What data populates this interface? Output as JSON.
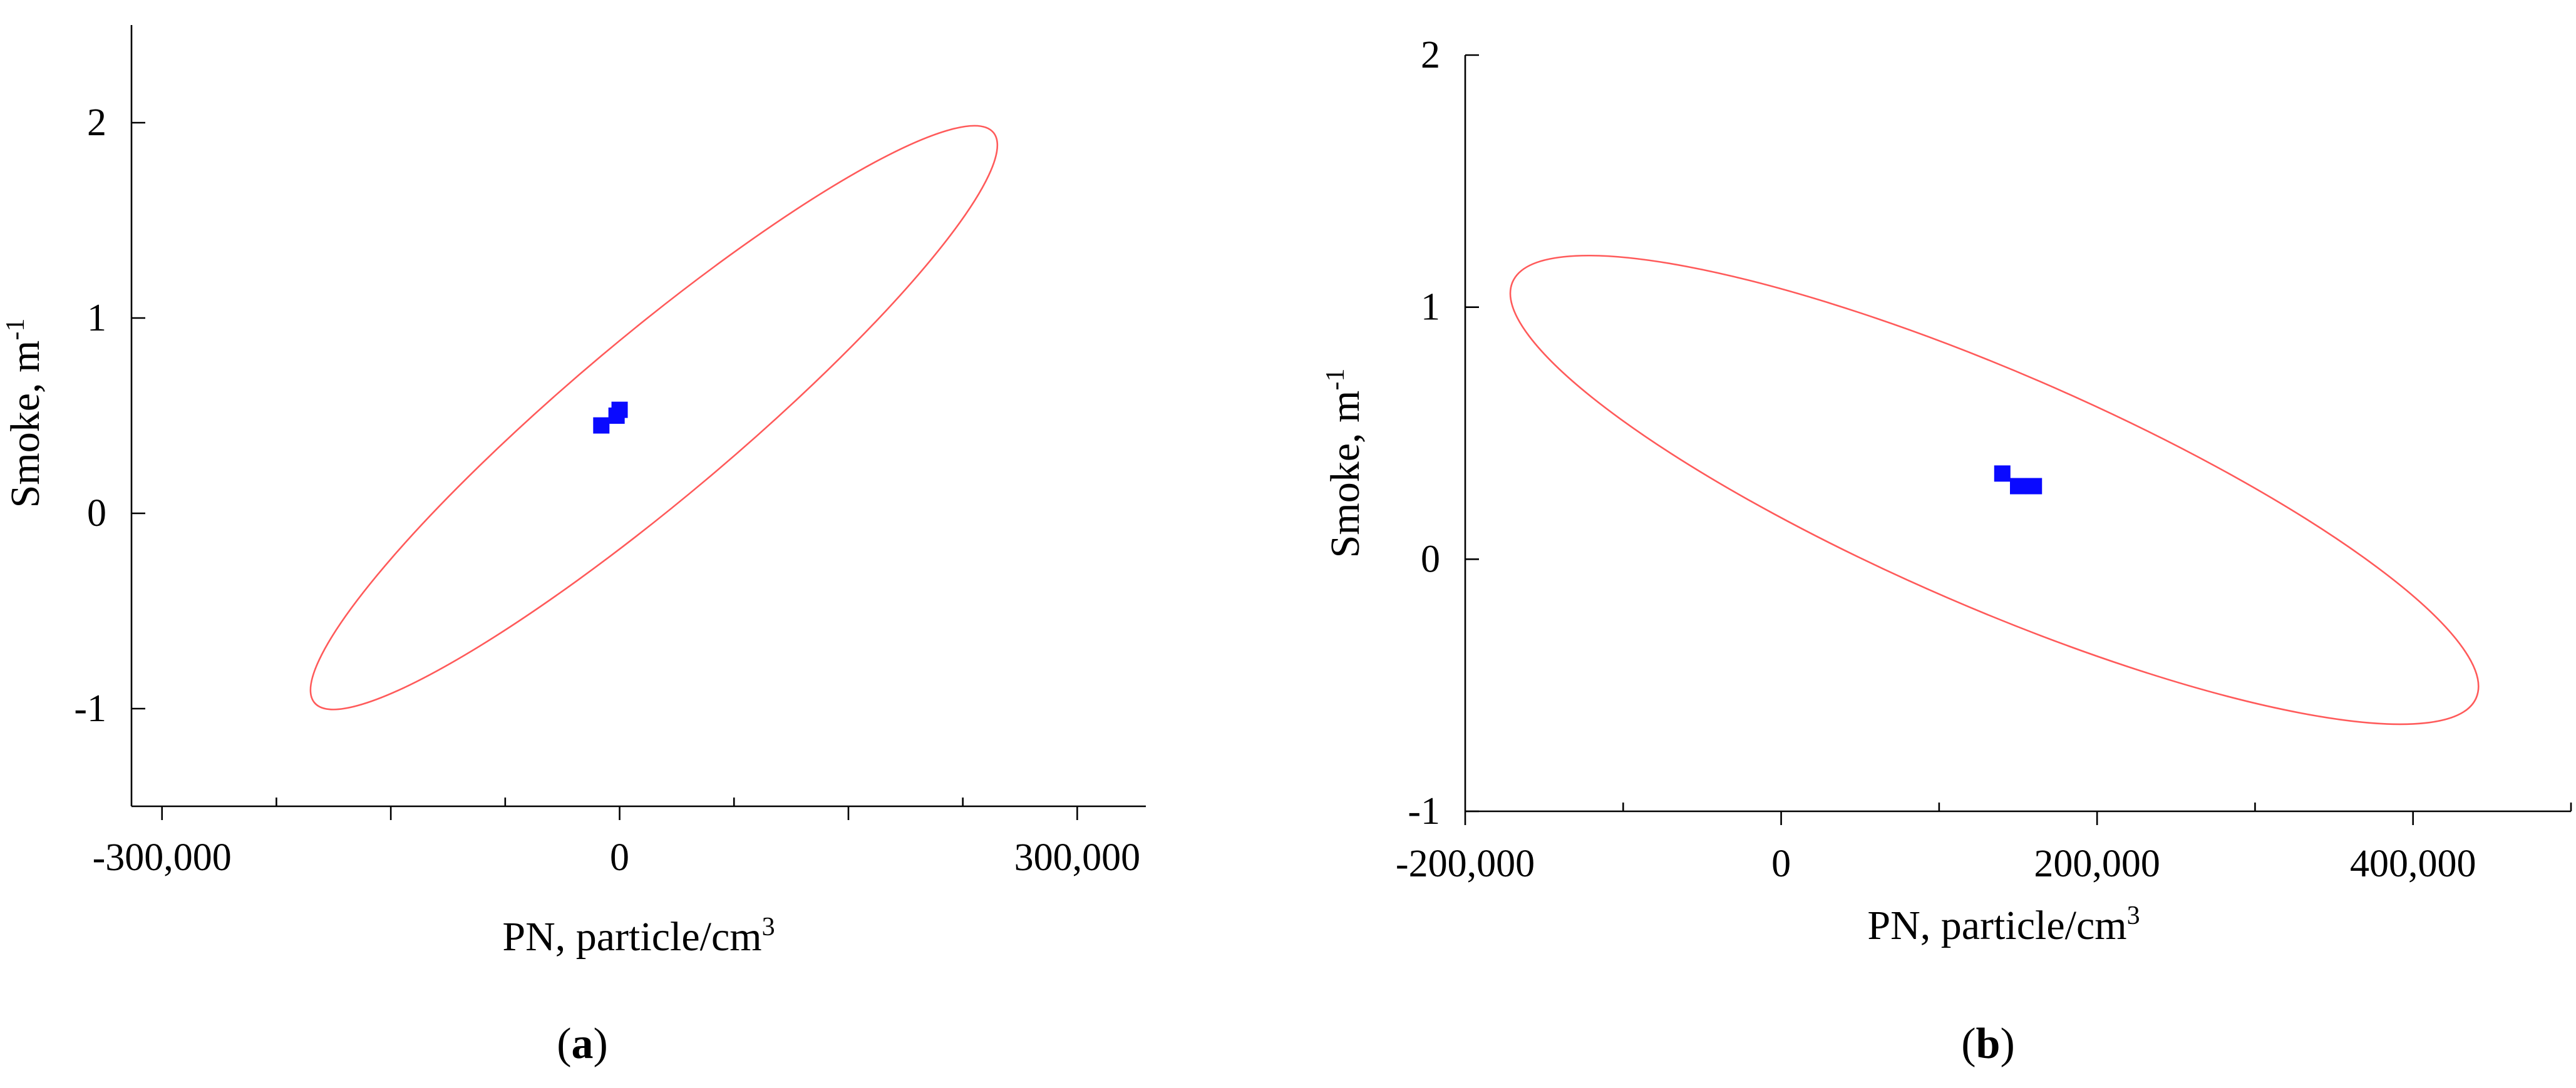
{
  "chart_data": [
    {
      "type": "scatter",
      "panel_label": {
        "open": "(",
        "letter": "a",
        "close": ")"
      },
      "xlabel": {
        "text": "PN, particle/cm",
        "sup": "3"
      },
      "ylabel": {
        "text": "Smoke, m",
        "sup": "-1"
      },
      "xlim": [
        -320000,
        345000
      ],
      "ylim": [
        -1.5,
        2.5
      ],
      "x_ticks_major": [
        -300000,
        -150000,
        0,
        150000,
        300000
      ],
      "x_ticks_labels": [
        "-300,000",
        "",
        "0",
        "",
        "300,000"
      ],
      "x_ticks_minor": [
        -225000,
        -75000,
        75000,
        225000
      ],
      "y_ticks": [
        -1,
        0,
        1,
        2
      ],
      "y_tick_labels": [
        "-1",
        "0",
        "1",
        "2"
      ],
      "grid": false,
      "ellipse": {
        "center": [
          20000,
          0.5
        ],
        "semi_major_points": [
          [
            -200000,
            -0.97
          ],
          [
            245000,
            1.95
          ]
        ],
        "width_y": 0.75,
        "color": "#ff5a5a"
      },
      "points": [
        {
          "x": -12000,
          "y": 0.45
        },
        {
          "x": -2000,
          "y": 0.5
        },
        {
          "x": 0,
          "y": 0.53
        }
      ],
      "point_color": "#0a0aff"
    },
    {
      "type": "scatter",
      "panel_label": {
        "open": "(",
        "letter": "b",
        "close": ")"
      },
      "xlabel": {
        "text": "PN, particle/cm",
        "sup": "3"
      },
      "ylabel": {
        "text": "Smoke, m",
        "sup": "-1"
      },
      "xlim": [
        -200000,
        500000
      ],
      "ylim": [
        -1,
        2
      ],
      "x_ticks_major": [
        -200000,
        0,
        200000,
        400000
      ],
      "x_ticks_labels": [
        "-200,000",
        "0",
        "200,000",
        "400,000"
      ],
      "x_ticks_minor": [
        -100000,
        100000,
        300000,
        500000
      ],
      "y_ticks": [
        -1,
        0,
        1,
        2
      ],
      "y_tick_labels": [
        "-1",
        "0",
        "1",
        "2"
      ],
      "grid": false,
      "ellipse": {
        "center": [
          130000,
          0.3
        ],
        "semi_major_points": [
          [
            -170000,
            1.1
          ],
          [
            440000,
            -0.55
          ]
        ],
        "width_y": 0.8,
        "color": "#ff5a5a"
      },
      "points": [
        {
          "x": 140000,
          "y": 0.34
        },
        {
          "x": 150000,
          "y": 0.29
        },
        {
          "x": 160000,
          "y": 0.29
        }
      ],
      "point_color": "#0a0aff"
    }
  ]
}
